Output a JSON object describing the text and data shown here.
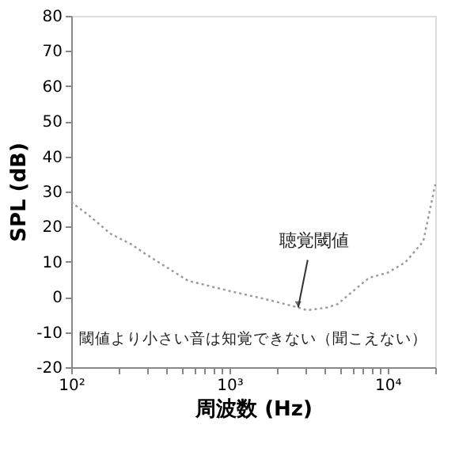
{
  "chart_data": {
    "type": "line",
    "xlabel": "周波数 (Hz)",
    "ylabel": "SPL (dB)",
    "x": [
      100,
      131,
      177,
      239,
      300,
      548,
      1000,
      1680,
      2720,
      3090,
      4170,
      4840,
      7600,
      10000,
      12900,
      16800,
      20000
    ],
    "series": [
      {
        "color": "#999999",
        "line_style": "dotted",
        "values": [
          27,
          23,
          18,
          15,
          12,
          4.6,
          1.7,
          -0.6,
          -3,
          -3.8,
          -3,
          -2,
          5.4,
          6.9,
          9.8,
          15.8,
          32
        ]
      }
    ],
    "log": "x",
    "xlim": [
      100,
      20000
    ],
    "ylim": [
      -20,
      80
    ],
    "xticks": [
      {
        "value": 100,
        "label": "10²"
      },
      {
        "value": 200,
        "label": null
      },
      {
        "value": 300,
        "label": null
      },
      {
        "value": 400,
        "label": null
      },
      {
        "value": 500,
        "label": null
      },
      {
        "value": 600,
        "label": null
      },
      {
        "value": 700,
        "label": null
      },
      {
        "value": 800,
        "label": null
      },
      {
        "value": 900,
        "label": null
      },
      {
        "value": 1000,
        "label": "10³"
      },
      {
        "value": 2000,
        "label": null
      },
      {
        "value": 3000,
        "label": null
      },
      {
        "value": 4000,
        "label": null
      },
      {
        "value": 5000,
        "label": null
      },
      {
        "value": 6000,
        "label": null
      },
      {
        "value": 7000,
        "label": null
      },
      {
        "value": 8000,
        "label": null
      },
      {
        "value": 9000,
        "label": null
      },
      {
        "value": 10000,
        "label": "10⁴"
      },
      {
        "value": 20000,
        "label": null
      }
    ],
    "yticks": [
      -20,
      -10,
      0,
      10,
      20,
      30,
      40,
      50,
      60,
      70,
      80
    ],
    "grid": false,
    "annotations": [
      {
        "text": "聴覚閾値",
        "x": 2720,
        "y": -3
      },
      "閾値より小さい音は知覚できない（聞こえない）"
    ]
  }
}
